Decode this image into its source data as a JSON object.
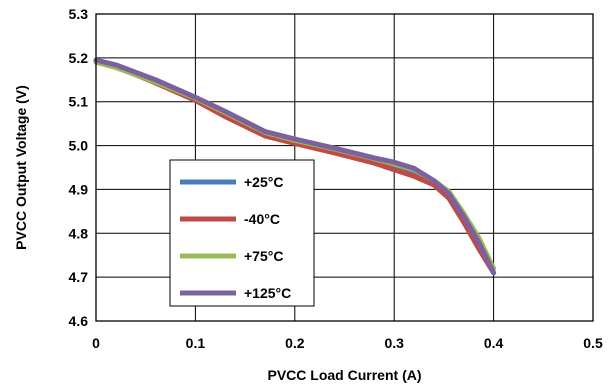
{
  "chart_data": {
    "type": "line",
    "title": "",
    "xlabel": "PVCC Load Current (A)",
    "ylabel": "PVCC Output Voltage (V)",
    "xlim": [
      0,
      0.5
    ],
    "ylim": [
      4.6,
      5.3
    ],
    "xticks": [
      "0",
      "0.1",
      "0.2",
      "0.3",
      "0.4",
      "0.5"
    ],
    "yticks": [
      "4.6",
      "4.7",
      "4.8",
      "4.9",
      "5.0",
      "5.1",
      "5.2",
      "5.3"
    ],
    "grid": true,
    "legend_position": "lower-left inside plot",
    "series": [
      {
        "name": "+25°C",
        "color": "#4a7ebb",
        "x": [
          0,
          0.02,
          0.06,
          0.1,
          0.13,
          0.17,
          0.2,
          0.24,
          0.28,
          0.3,
          0.32,
          0.34,
          0.355,
          0.37,
          0.385,
          0.4
        ],
        "y": [
          5.193,
          5.181,
          5.145,
          5.105,
          5.07,
          5.025,
          5.01,
          4.99,
          4.968,
          4.955,
          4.94,
          4.915,
          4.885,
          4.83,
          4.77,
          4.71
        ]
      },
      {
        "name": "-40°C",
        "color": "#be4b48",
        "x": [
          0,
          0.02,
          0.06,
          0.1,
          0.13,
          0.17,
          0.2,
          0.24,
          0.28,
          0.3,
          0.32,
          0.34,
          0.355,
          0.37,
          0.385,
          0.4
        ],
        "y": [
          5.192,
          5.18,
          5.143,
          5.103,
          5.066,
          5.022,
          5.005,
          4.983,
          4.96,
          4.945,
          4.93,
          4.91,
          4.88,
          4.825,
          4.765,
          4.71
        ]
      },
      {
        "name": "+75°C",
        "color": "#98b954",
        "x": [
          0,
          0.02,
          0.06,
          0.1,
          0.13,
          0.17,
          0.2,
          0.24,
          0.28,
          0.3,
          0.32,
          0.34,
          0.355,
          0.37,
          0.385,
          0.4
        ],
        "y": [
          5.19,
          5.178,
          5.145,
          5.108,
          5.075,
          5.03,
          5.012,
          4.992,
          4.97,
          4.958,
          4.945,
          4.92,
          4.895,
          4.845,
          4.79,
          4.72
        ]
      },
      {
        "name": "+125°C",
        "color": "#7d60a0",
        "x": [
          0,
          0.02,
          0.06,
          0.1,
          0.13,
          0.17,
          0.2,
          0.24,
          0.28,
          0.3,
          0.32,
          0.34,
          0.355,
          0.37,
          0.385,
          0.4
        ],
        "y": [
          5.195,
          5.184,
          5.15,
          5.11,
          5.078,
          5.032,
          5.015,
          4.994,
          4.972,
          4.962,
          4.948,
          4.92,
          4.89,
          4.838,
          4.78,
          4.71
        ]
      }
    ]
  }
}
